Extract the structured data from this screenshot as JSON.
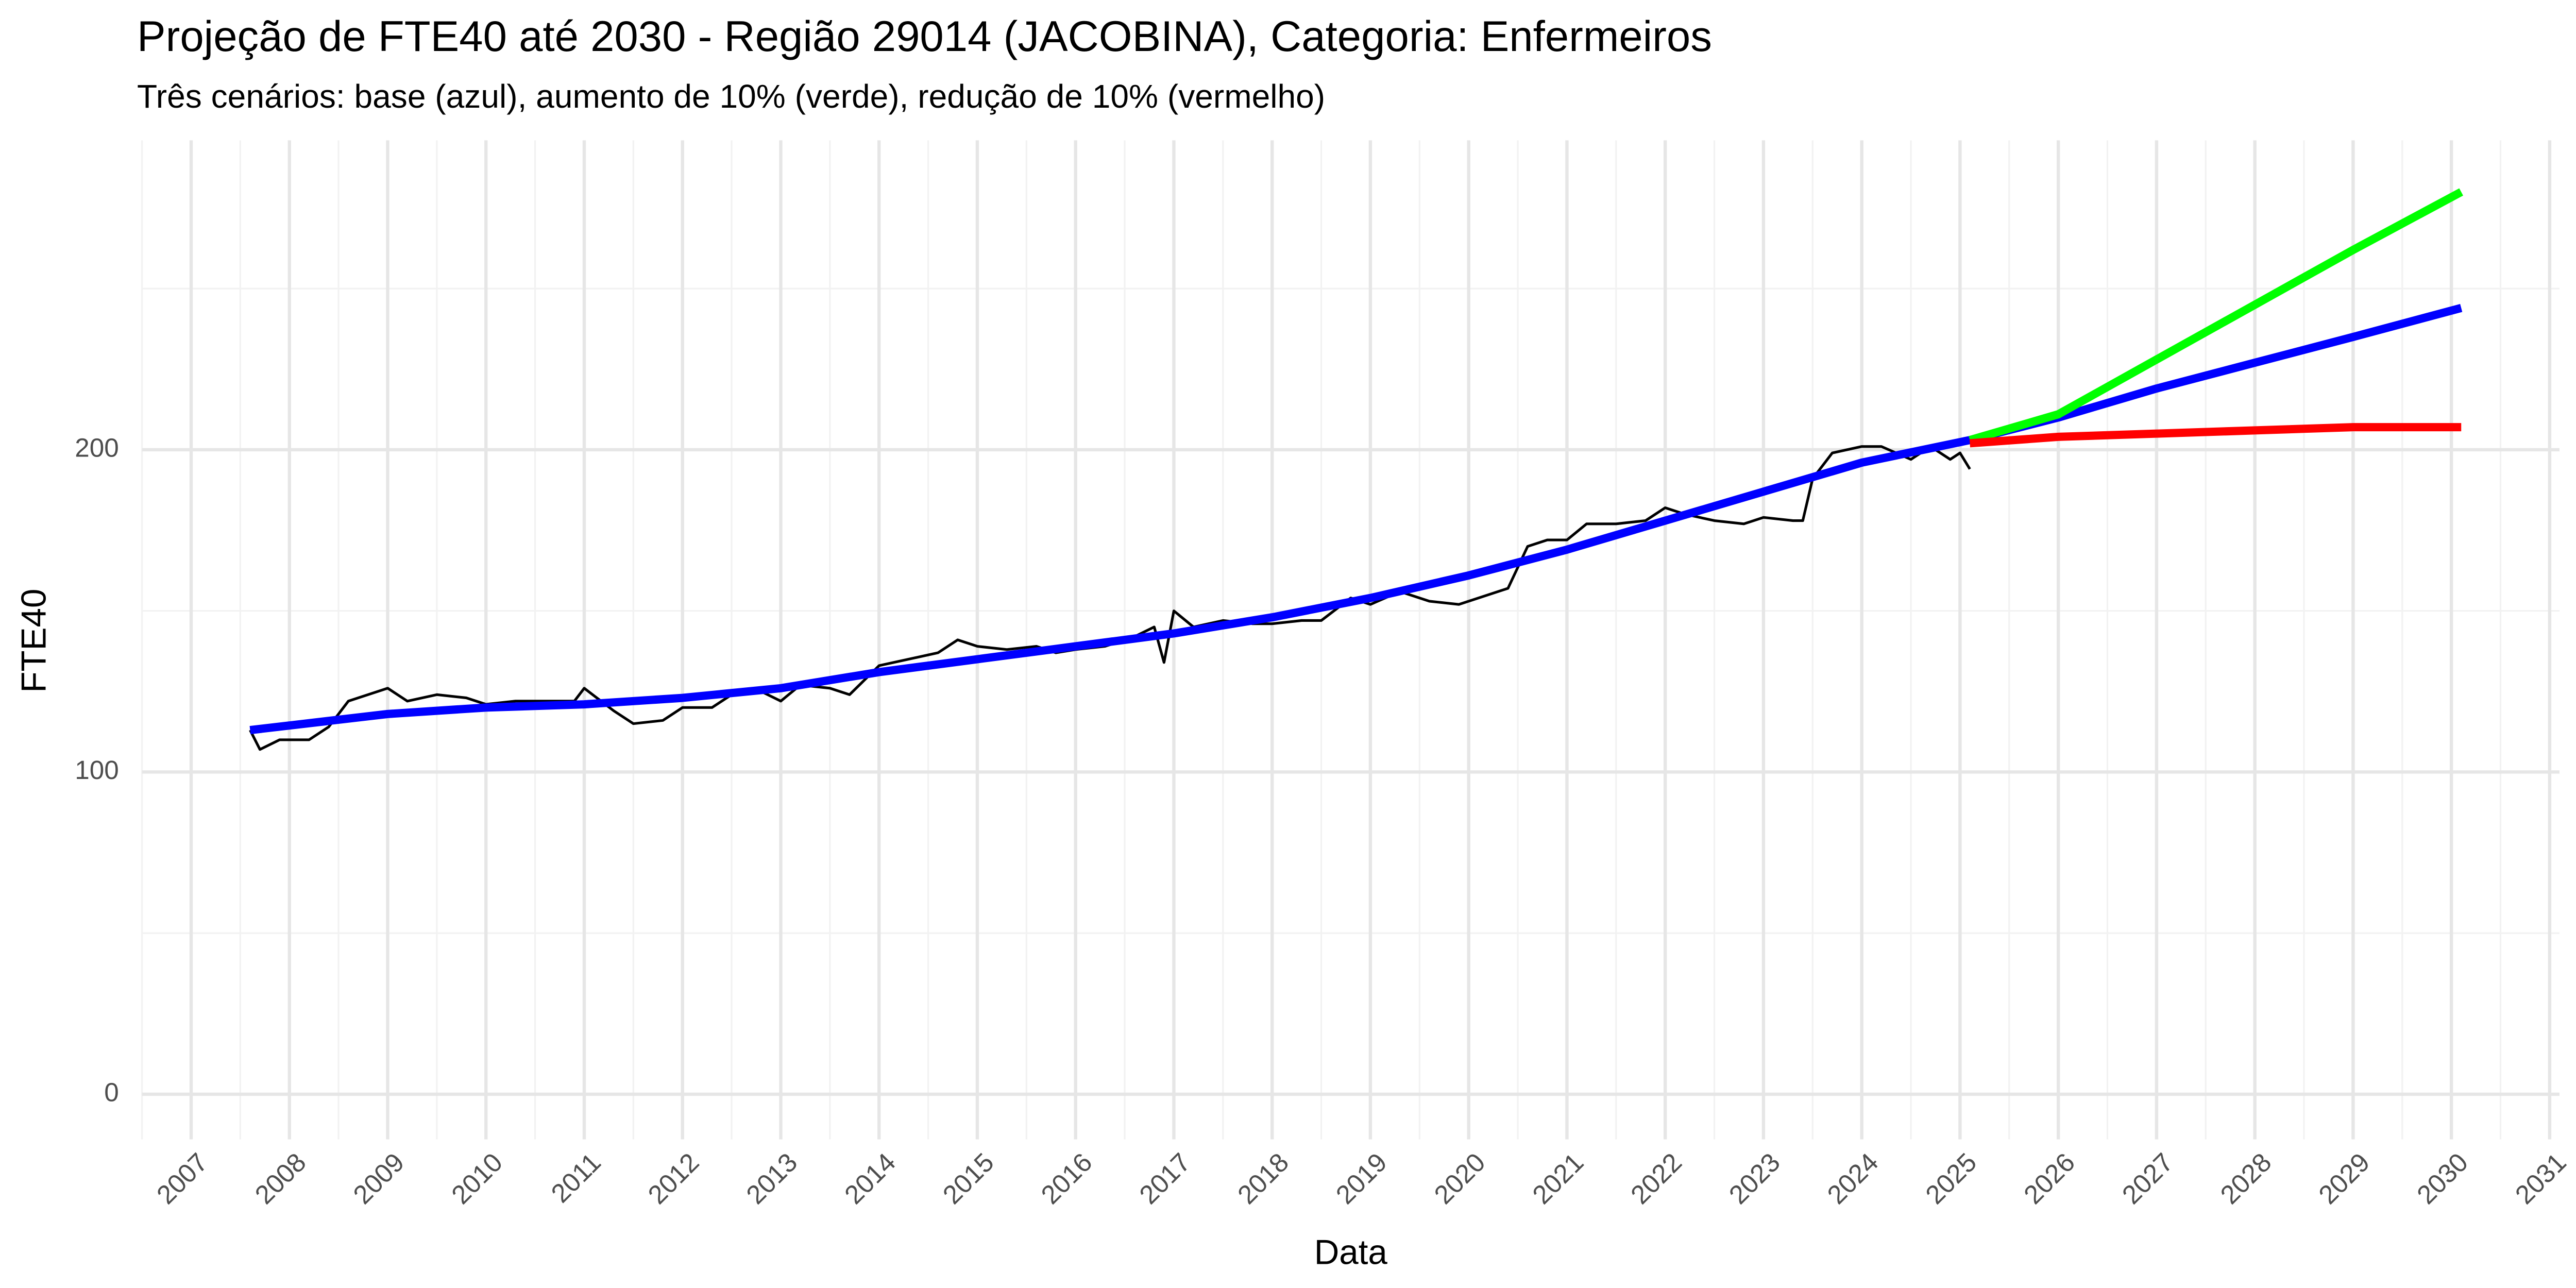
{
  "chart_data": {
    "type": "line",
    "title": "Projeção de FTE40 até 2030 - Região 29014 (JACOBINA), Categoria: Enfermeiros",
    "subtitle": "Três cenários: base (azul), aumento de 10% (verde), redução de 10% (vermelho)",
    "xlabel": "Data",
    "ylabel": "FTE40",
    "xlim": [
      2006.5,
      2031.1
    ],
    "xticks": [
      2007,
      2008,
      2009,
      2010,
      2011,
      2012,
      2013,
      2014,
      2015,
      2016,
      2017,
      2018,
      2019,
      2020,
      2021,
      2022,
      2023,
      2024,
      2025,
      2026,
      2027,
      2028,
      2029,
      2030,
      2031
    ],
    "ylim": [
      -14,
      296
    ],
    "yticks": [
      0,
      100,
      200
    ],
    "yminorticks": [
      50,
      150,
      250
    ],
    "grid": true,
    "series": [
      {
        "color": "#000000",
        "width": 1.6,
        "x": [
          2007.6,
          2007.7,
          2007.9,
          2008.2,
          2008.4,
          2008.6,
          2008.8,
          2009.0,
          2009.2,
          2009.5,
          2009.8,
          2010.0,
          2010.3,
          2010.6,
          2010.9,
          2011.0,
          2011.3,
          2011.5,
          2011.8,
          2012.0,
          2012.3,
          2012.5,
          2012.8,
          2013.0,
          2013.2,
          2013.5,
          2013.7,
          2014.0,
          2014.3,
          2014.6,
          2014.8,
          2015.0,
          2015.3,
          2015.6,
          2015.8,
          2016.0,
          2016.3,
          2016.6,
          2016.8,
          2016.9,
          2017.0,
          2017.2,
          2017.5,
          2017.8,
          2018.0,
          2018.3,
          2018.5,
          2018.8,
          2019.0,
          2019.3,
          2019.6,
          2019.9,
          2020.1,
          2020.4,
          2020.6,
          2020.8,
          2021.0,
          2021.2,
          2021.5,
          2021.8,
          2022.0,
          2022.2,
          2022.5,
          2022.8,
          2023.0,
          2023.3,
          2023.4,
          2023.5,
          2023.7,
          2024.0,
          2024.2,
          2024.5,
          2024.7,
          2024.9,
          2025.0,
          2025.1
        ],
        "values": [
          113,
          107,
          110,
          110,
          114,
          122,
          124,
          126,
          122,
          124,
          123,
          121,
          122,
          122,
          122,
          126,
          119,
          115,
          116,
          120,
          120,
          124,
          125,
          122,
          127,
          126,
          124,
          133,
          135,
          137,
          141,
          139,
          138,
          139,
          137,
          138,
          139,
          142,
          145,
          134,
          150,
          145,
          147,
          146,
          146,
          147,
          147,
          154,
          152,
          156,
          153,
          152,
          154,
          157,
          170,
          172,
          172,
          177,
          177,
          178,
          182,
          180,
          178,
          177,
          179,
          178,
          178,
          191,
          199,
          201,
          201,
          197,
          201,
          197,
          199,
          194
        ]
      },
      {
        "color": "#0000ff",
        "width": 5,
        "x": [
          2007.6,
          2009,
          2010,
          2011,
          2012,
          2013,
          2014,
          2015,
          2016,
          2017,
          2018,
          2019,
          2020,
          2021,
          2022,
          2023,
          2024,
          2025.1,
          2026,
          2027,
          2028,
          2029,
          2030.1
        ],
        "values": [
          113,
          118,
          120,
          121,
          123,
          126,
          131,
          135,
          139,
          143,
          148,
          154,
          161,
          169,
          178,
          187,
          196,
          203,
          210,
          219,
          227,
          235,
          244
        ]
      },
      {
        "color": "#00ff00",
        "width": 5,
        "x": [
          2025.1,
          2026,
          2027,
          2028,
          2029,
          2030.1
        ],
        "values": [
          203,
          211,
          228,
          245,
          262,
          280
        ]
      },
      {
        "color": "#ff0000",
        "width": 5,
        "x": [
          2025.1,
          2026,
          2027,
          2028,
          2029,
          2030.1
        ],
        "values": [
          202,
          204,
          205,
          206,
          207,
          207
        ]
      }
    ]
  }
}
